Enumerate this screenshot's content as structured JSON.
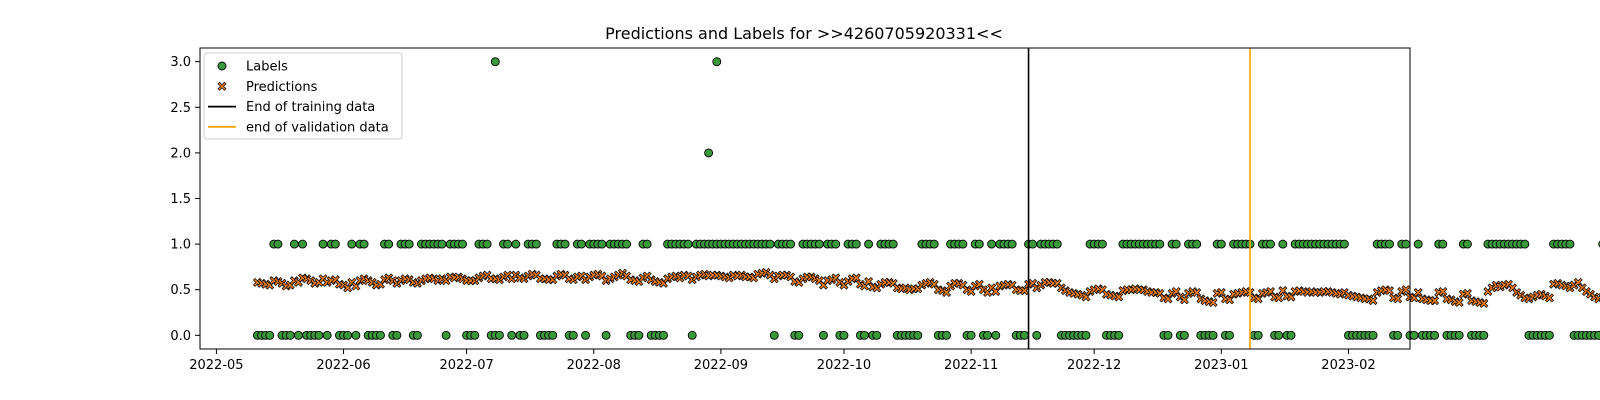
{
  "chart_data": {
    "type": "scatter",
    "title": "Predictions and Labels for >>4260705920331<<",
    "xlabel": "",
    "ylabel": "",
    "x_range": [
      "2022-04-27",
      "2023-02-16"
    ],
    "ylim": [
      -0.15,
      3.15
    ],
    "x_ticks": [
      "2022-05",
      "2022-06",
      "2022-07",
      "2022-08",
      "2022-09",
      "2022-10",
      "2022-11",
      "2022-12",
      "2023-01",
      "2023-02"
    ],
    "x_tick_dates": [
      "2022-05-01",
      "2022-06-01",
      "2022-07-01",
      "2022-08-01",
      "2022-09-01",
      "2022-10-01",
      "2022-11-01",
      "2022-12-01",
      "2023-01-01",
      "2023-02-01"
    ],
    "y_ticks": [
      0.0,
      0.5,
      1.0,
      1.5,
      2.0,
      2.5,
      3.0
    ],
    "y_tick_labels": [
      "0.0",
      "0.5",
      "1.0",
      "1.5",
      "2.0",
      "2.5",
      "3.0"
    ],
    "grid": false,
    "legend_position": "top-left",
    "colors": {
      "labels": "#3a9a3a",
      "predictions": "#f07f20",
      "training_line": "#000000",
      "validation_line": "#ffa500"
    },
    "vertical_lines": [
      {
        "name": "End of training data",
        "date": "2022-11-15",
        "color": "#000000"
      },
      {
        "name": "end of validation data",
        "date": "2023-01-08",
        "color": "#ffa500"
      }
    ],
    "series": [
      {
        "name": "Labels",
        "marker": "circle",
        "start_date": "2022-05-11",
        "values": [
          0,
          0,
          0,
          0,
          1,
          1,
          0,
          0,
          0,
          1,
          0,
          1,
          0,
          0,
          0,
          0,
          1,
          0,
          1,
          1,
          0,
          0,
          0,
          1,
          0,
          1,
          1,
          0,
          0,
          0,
          0,
          1,
          1,
          0,
          0,
          1,
          1,
          1,
          0,
          0,
          1,
          1,
          1,
          1,
          1,
          1,
          0,
          1,
          1,
          1,
          1,
          0,
          0,
          0,
          1,
          1,
          1,
          0,
          0,
          0,
          1,
          1,
          0,
          1,
          0,
          0,
          1,
          1,
          1,
          0,
          0,
          0,
          0,
          1,
          1,
          1,
          0,
          0,
          1,
          1,
          0,
          1,
          1,
          1,
          1,
          0,
          1,
          1,
          1,
          1,
          1,
          0,
          0,
          0,
          1,
          1,
          0,
          0,
          0,
          0,
          1,
          1,
          1,
          1,
          1,
          1,
          0,
          1,
          1,
          1,
          1,
          1,
          1,
          1,
          1,
          1,
          1,
          1,
          1,
          1,
          1,
          1,
          1,
          1,
          1,
          1,
          0,
          1,
          1,
          1,
          1,
          0,
          0,
          1,
          1,
          1,
          1,
          1,
          0,
          1,
          1,
          1,
          0,
          0,
          1,
          1,
          1,
          0,
          0,
          1,
          0,
          0,
          1,
          1,
          1,
          1,
          0,
          0,
          0,
          0,
          0,
          0,
          1,
          1,
          1,
          1,
          0,
          0,
          0,
          1,
          1,
          1,
          1,
          0,
          0,
          1,
          1,
          0,
          0,
          1,
          0,
          1,
          1,
          1,
          1,
          0,
          0,
          0,
          1,
          1,
          0,
          1,
          1,
          1,
          1,
          1,
          0,
          0,
          0,
          0,
          0,
          0,
          0,
          1,
          1,
          1,
          1,
          0,
          0,
          0,
          0,
          1,
          1,
          1,
          1,
          1,
          1,
          1,
          1,
          1,
          1,
          0,
          0,
          1,
          1,
          0,
          0,
          1,
          1,
          1,
          0,
          0,
          0,
          0,
          1,
          1,
          0,
          0,
          1,
          1,
          1,
          1,
          1,
          0,
          0,
          1,
          1,
          1,
          0,
          0,
          1,
          0,
          0,
          1,
          1,
          1,
          1,
          1,
          1,
          1,
          1,
          1,
          1,
          1,
          1,
          1,
          0,
          0,
          0,
          0,
          0,
          0,
          0,
          1,
          1,
          1,
          1,
          0,
          0,
          1,
          1,
          0,
          0,
          1,
          0,
          0,
          0,
          0,
          1,
          1,
          0,
          0,
          0,
          0,
          1,
          1,
          0,
          0,
          0,
          0,
          1,
          1,
          1,
          1,
          1,
          1,
          1,
          1,
          1,
          1,
          0,
          0,
          0,
          0,
          0,
          0,
          1,
          1,
          1,
          1,
          1,
          0,
          0,
          0,
          0,
          0,
          0,
          0,
          1,
          1,
          1,
          0,
          0,
          0,
          0,
          0,
          0,
          1,
          1,
          1,
          1,
          1,
          1,
          0,
          0,
          1,
          1,
          0,
          0,
          0,
          0,
          0,
          0,
          1,
          1,
          1,
          1,
          1,
          0,
          0,
          0,
          0,
          0,
          0,
          0,
          0,
          0
        ]
      },
      {
        "name": "Predictions",
        "marker": "x",
        "start_date": "2022-05-11",
        "values": [
          0.58,
          0.57,
          0.56,
          0.55,
          0.6,
          0.59,
          0.57,
          0.54,
          0.55,
          0.6,
          0.58,
          0.63,
          0.62,
          0.6,
          0.57,
          0.58,
          0.62,
          0.58,
          0.6,
          0.61,
          0.56,
          0.55,
          0.52,
          0.58,
          0.54,
          0.6,
          0.62,
          0.6,
          0.58,
          0.55,
          0.56,
          0.61,
          0.63,
          0.6,
          0.57,
          0.6,
          0.62,
          0.61,
          0.58,
          0.57,
          0.6,
          0.62,
          0.63,
          0.62,
          0.6,
          0.62,
          0.6,
          0.64,
          0.63,
          0.64,
          0.62,
          0.6,
          0.6,
          0.6,
          0.63,
          0.65,
          0.66,
          0.62,
          0.62,
          0.61,
          0.64,
          0.66,
          0.62,
          0.66,
          0.63,
          0.62,
          0.65,
          0.67,
          0.66,
          0.62,
          0.62,
          0.61,
          0.61,
          0.65,
          0.67,
          0.66,
          0.62,
          0.61,
          0.64,
          0.65,
          0.61,
          0.64,
          0.66,
          0.67,
          0.65,
          0.6,
          0.62,
          0.64,
          0.66,
          0.68,
          0.65,
          0.61,
          0.6,
          0.59,
          0.63,
          0.65,
          0.61,
          0.59,
          0.58,
          0.57,
          0.62,
          0.64,
          0.65,
          0.63,
          0.66,
          0.65,
          0.61,
          0.64,
          0.66,
          0.67,
          0.65,
          0.66,
          0.66,
          0.65,
          0.64,
          0.63,
          0.66,
          0.65,
          0.66,
          0.64,
          0.64,
          0.63,
          0.67,
          0.68,
          0.69,
          0.66,
          0.62,
          0.65,
          0.66,
          0.66,
          0.64,
          0.59,
          0.58,
          0.62,
          0.64,
          0.64,
          0.62,
          0.6,
          0.55,
          0.6,
          0.61,
          0.63,
          0.58,
          0.55,
          0.59,
          0.62,
          0.63,
          0.56,
          0.54,
          0.59,
          0.53,
          0.52,
          0.56,
          0.58,
          0.58,
          0.57,
          0.52,
          0.51,
          0.52,
          0.5,
          0.51,
          0.51,
          0.55,
          0.57,
          0.58,
          0.56,
          0.5,
          0.49,
          0.47,
          0.54,
          0.57,
          0.57,
          0.55,
          0.5,
          0.48,
          0.54,
          0.56,
          0.5,
          0.47,
          0.52,
          0.48,
          0.54,
          0.55,
          0.56,
          0.55,
          0.5,
          0.49,
          0.49,
          0.56,
          0.57,
          0.52,
          0.55,
          0.58,
          0.58,
          0.57,
          0.57,
          0.52,
          0.49,
          0.47,
          0.46,
          0.45,
          0.44,
          0.42,
          0.48,
          0.5,
          0.51,
          0.5,
          0.45,
          0.44,
          0.43,
          0.42,
          0.49,
          0.5,
          0.5,
          0.51,
          0.5,
          0.5,
          0.48,
          0.47,
          0.47,
          0.46,
          0.41,
          0.4,
          0.46,
          0.48,
          0.42,
          0.39,
          0.46,
          0.48,
          0.47,
          0.4,
          0.38,
          0.37,
          0.36,
          0.46,
          0.47,
          0.4,
          0.39,
          0.45,
          0.46,
          0.47,
          0.48,
          0.47,
          0.41,
          0.4,
          0.46,
          0.47,
          0.48,
          0.42,
          0.41,
          0.49,
          0.43,
          0.42,
          0.48,
          0.49,
          0.48,
          0.47,
          0.48,
          0.47,
          0.47,
          0.48,
          0.48,
          0.47,
          0.46,
          0.45,
          0.47,
          0.44,
          0.43,
          0.42,
          0.41,
          0.4,
          0.4,
          0.38,
          0.47,
          0.49,
          0.5,
          0.49,
          0.41,
          0.4,
          0.48,
          0.5,
          0.42,
          0.41,
          0.47,
          0.4,
          0.39,
          0.38,
          0.38,
          0.47,
          0.48,
          0.4,
          0.39,
          0.37,
          0.36,
          0.45,
          0.46,
          0.38,
          0.37,
          0.36,
          0.35,
          0.48,
          0.52,
          0.55,
          0.53,
          0.55,
          0.56,
          0.52,
          0.47,
          0.44,
          0.41,
          0.4,
          0.42,
          0.44,
          0.45,
          0.43,
          0.41,
          0.56,
          0.57,
          0.55,
          0.54,
          0.52,
          0.55,
          0.58,
          0.52,
          0.48,
          0.45,
          0.42,
          0.4,
          0.42,
          0.45,
          0.48,
          0.4,
          0.38,
          0.36,
          0.35,
          0.37,
          0.4,
          0.52,
          0.55,
          0.56,
          0.54,
          0.53,
          0.55,
          0.5,
          0.48,
          0.55,
          0.56,
          0.5,
          0.48,
          0.47,
          0.45,
          0.44,
          0.43,
          0.54,
          0.55,
          0.56,
          0.55,
          0.54,
          0.48,
          0.47,
          0.46,
          0.44,
          0.43,
          0.42,
          0.41,
          0.4,
          0.39
        ]
      }
    ],
    "outliers": [
      {
        "date": "2022-07-08",
        "value": 3.0
      },
      {
        "date": "2022-08-29",
        "value": 2.0
      },
      {
        "date": "2022-08-31",
        "value": 3.0
      }
    ],
    "legend": [
      {
        "label": "Labels",
        "symbol": "circle"
      },
      {
        "label": "Predictions",
        "symbol": "x"
      },
      {
        "label": "End of training data",
        "symbol": "line-black"
      },
      {
        "label": "end of validation data",
        "symbol": "line-orange"
      }
    ]
  }
}
